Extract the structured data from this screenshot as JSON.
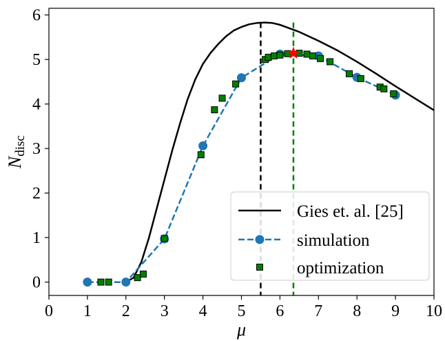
{
  "chart_data": {
    "type": "line",
    "xlabel": "μ",
    "ylabel_main": "N",
    "ylabel_sub": "disc",
    "xlim": [
      0,
      10
    ],
    "ylim": [
      -0.3,
      6.15
    ],
    "xticks": [
      0,
      1,
      2,
      3,
      4,
      5,
      6,
      7,
      8,
      9,
      10
    ],
    "yticks": [
      0,
      1,
      2,
      3,
      4,
      5,
      6
    ],
    "grid": false,
    "legend_position": "bottom-right",
    "series": [
      {
        "name": "Gies et. al. [25]",
        "style": "solid-line",
        "color": "#000000",
        "x": [
          2.0,
          2.2,
          2.4,
          2.6,
          2.8,
          3.0,
          3.2,
          3.4,
          3.6,
          3.8,
          4.0,
          4.2,
          4.4,
          4.6,
          4.8,
          5.0,
          5.2,
          5.4,
          5.6,
          5.8,
          6.0,
          6.5,
          7.0,
          7.5,
          8.0,
          8.5,
          9.0,
          9.5,
          10.0
        ],
        "y": [
          0.0,
          0.1,
          0.45,
          1.0,
          1.65,
          2.3,
          2.95,
          3.55,
          4.1,
          4.55,
          4.9,
          5.15,
          5.35,
          5.52,
          5.65,
          5.73,
          5.79,
          5.82,
          5.83,
          5.82,
          5.78,
          5.62,
          5.42,
          5.2,
          4.95,
          4.68,
          4.4,
          4.13,
          3.86
        ]
      },
      {
        "name": "simulation",
        "style": "dashed-line-circles",
        "color": "#1f77b4",
        "x": [
          1,
          2,
          3,
          4,
          5,
          6,
          7,
          8,
          9
        ],
        "y": [
          0.0,
          0.0,
          0.97,
          3.06,
          4.59,
          5.12,
          5.08,
          4.6,
          4.2
        ]
      },
      {
        "name": "optimization",
        "style": "squares",
        "color": "#008000",
        "x": [
          1.35,
          1.55,
          2.3,
          2.45,
          3.0,
          3.95,
          4.3,
          4.5,
          4.85,
          5.62,
          5.7,
          5.85,
          6.0,
          6.2,
          6.5,
          6.7,
          6.85,
          7.05,
          7.3,
          7.8,
          8.1,
          8.6,
          8.7,
          8.95
        ],
        "y": [
          0.0,
          0.0,
          0.1,
          0.18,
          0.98,
          2.86,
          3.87,
          4.13,
          4.45,
          5.0,
          5.05,
          5.08,
          5.1,
          5.13,
          5.14,
          5.12,
          5.08,
          5.02,
          4.95,
          4.68,
          4.57,
          4.38,
          4.34,
          4.23
        ]
      }
    ],
    "vertical_lines": [
      {
        "x": 5.5,
        "color": "#000000",
        "style": "dashed"
      },
      {
        "x": 6.35,
        "color": "#008000",
        "style": "dashed"
      }
    ],
    "marker_star": {
      "x": 6.35,
      "y": 5.14,
      "color": "#ff0000"
    }
  }
}
